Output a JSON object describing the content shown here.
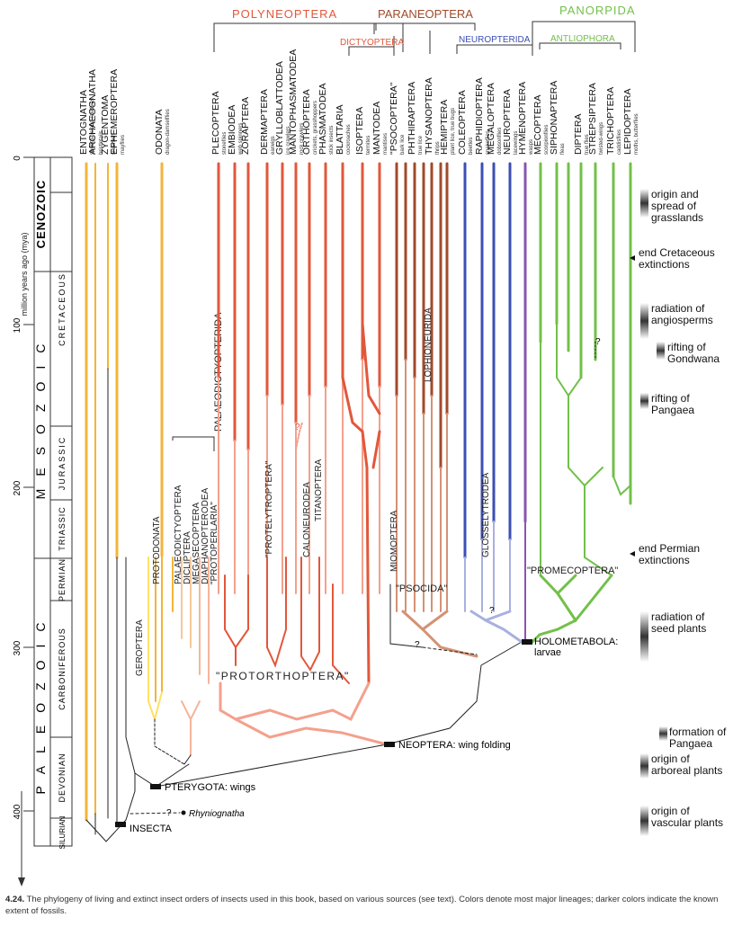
{
  "groups": {
    "polyneoptera": "POLYNEOPTERA",
    "paraneoptera": "PARANEOPTERA",
    "dictyoptera": "DICTYOPTERA",
    "neuropterida": "NEUROPTERIDA",
    "panorpida": "PANORPIDA",
    "antliophora": "ANTLIOPHORA",
    "palaeodictyopterida": "PALAEODICTYOPTERIDA"
  },
  "colors": {
    "basal": "#f3b43a",
    "polyneoptera": "#e2573a",
    "polyneoptera_light": "#f4a08c",
    "paraneoptera": "#a24a2a",
    "paraneoptera_light": "#d49274",
    "neuropterida": "#3c4fb4",
    "neuropterida_light": "#a8b0e0",
    "hymenoptera": "#8a55b0",
    "panorpida": "#72c04a",
    "black": "#222222"
  },
  "axis": {
    "title": "million years ago (mya)",
    "ticks": [
      "0",
      "100",
      "200",
      "300",
      "400"
    ],
    "eras": [
      "CENOZOIC",
      "MESOZOIC",
      "PALEOZOIC"
    ],
    "periods": [
      "CRETACEOUS",
      "JURASSIC",
      "TRIASSIC",
      "PERMIAN",
      "CARBONIFEROUS",
      "DEVONIAN",
      "SILURIAN"
    ]
  },
  "taxa": [
    {
      "name": "ENTOGNATHA",
      "sub": "springtails and relatives"
    },
    {
      "name": "ARCHAEOGNATHA",
      "sub": "bristletails"
    },
    {
      "name": "ZYGENTOMA",
      "sub": "silverfish"
    },
    {
      "name": "EPHEMEROPTERA",
      "sub": "mayflies"
    },
    {
      "name": "ODONATA",
      "sub": "dragon-damselflies"
    },
    {
      "name": "PLECOPTERA",
      "sub": "stoneflies"
    },
    {
      "name": "EMBIODEA",
      "sub": "web spinners"
    },
    {
      "name": "ZORAPTERA",
      "sub": ""
    },
    {
      "name": "DERMAPTERA",
      "sub": "earwigs"
    },
    {
      "name": "GRYLLOBLATTODEA",
      "sub": "ice crawlers"
    },
    {
      "name": "MANTOPHASMATODEA",
      "sub": "rock crawlers"
    },
    {
      "name": "ORTHOPTERA",
      "sub": "crickets, grasshoppers"
    },
    {
      "name": "PHASMATODEA",
      "sub": "stick insects"
    },
    {
      "name": "BLATTARIA",
      "sub": "cockroaches"
    },
    {
      "name": "ISOPTERA",
      "sub": "termites"
    },
    {
      "name": "MANTODEA",
      "sub": "mantises"
    },
    {
      "name": "\"PSOCOPTERA\"",
      "sub": "bark lice"
    },
    {
      "name": "PHTHIRAPTERA",
      "sub": "true lice"
    },
    {
      "name": "THYSANOPTERA",
      "sub": "thrips"
    },
    {
      "name": "HEMIPTERA",
      "sub": "plant lice, true bugs"
    },
    {
      "name": "COLEOPTERA",
      "sub": "beetles"
    },
    {
      "name": "RAPHIDIOPTERA",
      "sub": "snakeflies"
    },
    {
      "name": "MEGALOPTERA",
      "sub": "dobsonflies"
    },
    {
      "name": "NEUROPTERA",
      "sub": "lacewings"
    },
    {
      "name": "HYMENOPTERA",
      "sub": "wasps"
    },
    {
      "name": "MECOPTERA",
      "sub": "scorpionflies"
    },
    {
      "name": "SIPHONAPTERA",
      "sub": "fleas"
    },
    {
      "name": "DIPTERA",
      "sub": "true flies"
    },
    {
      "name": "STREPSIPTERA",
      "sub": "twisted-wings"
    },
    {
      "name": "TRICHOPTERA",
      "sub": "caddisflies"
    },
    {
      "name": "LEPIDOPTERA",
      "sub": "moths, butterflies"
    }
  ],
  "extinct_labels": {
    "palaeodictyoptera": "PALAEODICTYOPTERA",
    "dicliptera": "DICLIPTERA",
    "megasecoptera": "MEGASECOPTERA",
    "diaphanopterodea": "DIAPHANOPTERODEA",
    "protoperlaria": "\"PROTOPERLARIA\"",
    "protodonata": "PROTODONATA",
    "geroptera": "GEROPTERA",
    "protelytroptera": "\"PROTELYTROPTERA\"",
    "caloneurodea": "CALONEURODEA",
    "titanoptera": "TITANOPTERA",
    "lophioneurida": "LOPHIONEURIDA",
    "miomoptera": "MIOMOPTERA",
    "glosselytrodea": "GLOSSELYTRODEA",
    "psocida": "\"PSOCIDA\"",
    "promecoptera": "\"PROMECOPTERA\"",
    "protorthoptera": "\"PROTORTHOPTERA\""
  },
  "nodes": {
    "insecta": "INSECTA",
    "pterygota": "PTERYGOTA: wings",
    "neoptera": "NEOPTERA: wing folding",
    "holometabola": "HOLOMETABOLA:",
    "holometabola_sub": "larvae",
    "rhyniognatha": "Rhyniognatha",
    "question": "?"
  },
  "events": [
    {
      "lines": [
        "origin and",
        "spread of",
        "grasslands"
      ]
    },
    {
      "lines": [
        "end Cretaceous",
        "extinctions"
      ]
    },
    {
      "lines": [
        "radiation of",
        "angiosperms"
      ]
    },
    {
      "lines": [
        "rifting of",
        "Gondwana"
      ]
    },
    {
      "lines": [
        "rifting of",
        "Pangaea"
      ]
    },
    {
      "lines": [
        "end Permian",
        "extinctions"
      ]
    },
    {
      "lines": [
        "radiation of",
        "seed plants"
      ]
    },
    {
      "lines": [
        "formation of",
        "Pangaea"
      ]
    },
    {
      "lines": [
        "origin of",
        "arboreal plants"
      ]
    },
    {
      "lines": [
        "origin of",
        "vascular plants"
      ]
    }
  ],
  "caption": {
    "number": "4.24.",
    "text": "The phylogeny of living and extinct insect orders of insects used in this book, based on various sources (see text). Colors denote most major lineages; darker colors indicate the known extent of fossils."
  }
}
